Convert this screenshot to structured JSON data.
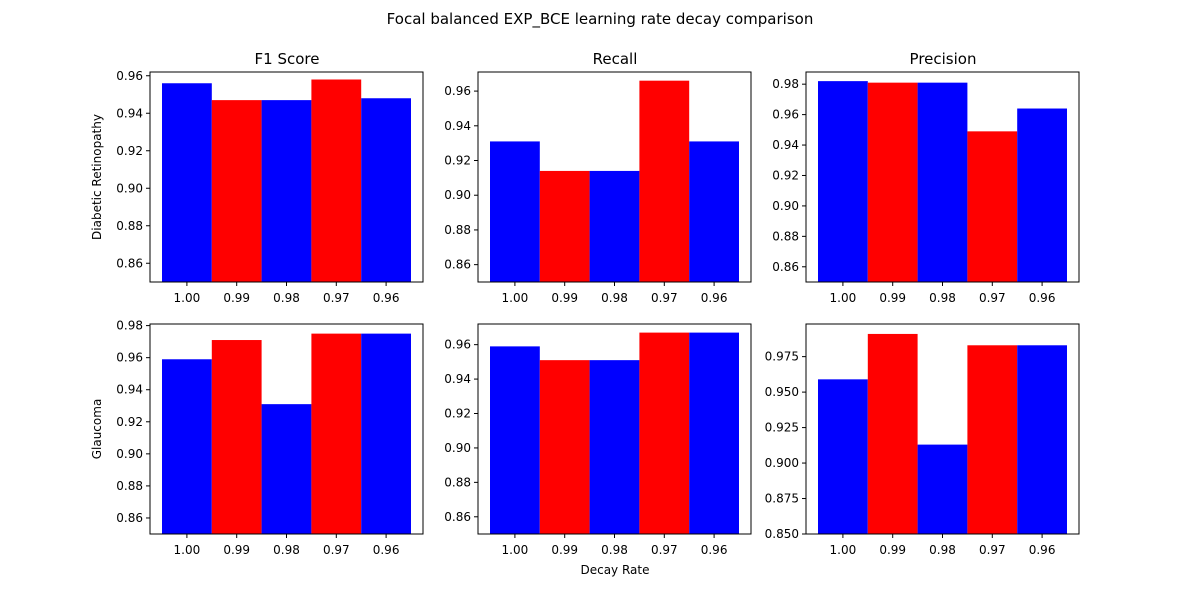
{
  "figure": {
    "suptitle": "Focal balanced EXP_BCE learning rate decay comparison",
    "xlabel": "Decay Rate",
    "row_labels": [
      "Diabetic Retinopathy",
      "Glaucoma"
    ],
    "col_titles": [
      "F1 Score",
      "Recall",
      "Precision"
    ]
  },
  "colors": {
    "blue": "#0000ff",
    "red": "#ff0000"
  },
  "chart_data": [
    {
      "type": "bar",
      "row": 0,
      "col": 0,
      "categories": [
        "1.00",
        "0.99",
        "0.98",
        "0.97",
        "0.96"
      ],
      "values": [
        0.956,
        0.947,
        0.947,
        0.958,
        0.948
      ],
      "bar_colors": [
        "blue",
        "red",
        "blue",
        "red",
        "blue"
      ],
      "ylim": [
        0.85,
        0.962
      ],
      "yticks": [
        0.86,
        0.88,
        0.9,
        0.92,
        0.94,
        0.96
      ],
      "ytick_labels": [
        "0.86",
        "0.88",
        "0.90",
        "0.92",
        "0.94",
        "0.96"
      ]
    },
    {
      "type": "bar",
      "row": 0,
      "col": 1,
      "categories": [
        "1.00",
        "0.99",
        "0.98",
        "0.97",
        "0.96"
      ],
      "values": [
        0.931,
        0.914,
        0.914,
        0.966,
        0.931
      ],
      "bar_colors": [
        "blue",
        "red",
        "blue",
        "red",
        "blue"
      ],
      "ylim": [
        0.85,
        0.971
      ],
      "yticks": [
        0.86,
        0.88,
        0.9,
        0.92,
        0.94,
        0.96
      ],
      "ytick_labels": [
        "0.86",
        "0.88",
        "0.90",
        "0.92",
        "0.94",
        "0.96"
      ]
    },
    {
      "type": "bar",
      "row": 0,
      "col": 2,
      "categories": [
        "1.00",
        "0.99",
        "0.98",
        "0.97",
        "0.96"
      ],
      "values": [
        0.982,
        0.981,
        0.981,
        0.949,
        0.964
      ],
      "bar_colors": [
        "blue",
        "red",
        "blue",
        "red",
        "blue"
      ],
      "ylim": [
        0.85,
        0.988
      ],
      "yticks": [
        0.86,
        0.88,
        0.9,
        0.92,
        0.94,
        0.96,
        0.98
      ],
      "ytick_labels": [
        "0.86",
        "0.88",
        "0.90",
        "0.92",
        "0.94",
        "0.96",
        "0.98"
      ]
    },
    {
      "type": "bar",
      "row": 1,
      "col": 0,
      "categories": [
        "1.00",
        "0.99",
        "0.98",
        "0.97",
        "0.96"
      ],
      "values": [
        0.959,
        0.971,
        0.931,
        0.975,
        0.975
      ],
      "bar_colors": [
        "blue",
        "red",
        "blue",
        "red",
        "blue"
      ],
      "ylim": [
        0.85,
        0.981
      ],
      "yticks": [
        0.86,
        0.88,
        0.9,
        0.92,
        0.94,
        0.96,
        0.98
      ],
      "ytick_labels": [
        "0.86",
        "0.88",
        "0.90",
        "0.92",
        "0.94",
        "0.96",
        "0.98"
      ]
    },
    {
      "type": "bar",
      "row": 1,
      "col": 1,
      "categories": [
        "1.00",
        "0.99",
        "0.98",
        "0.97",
        "0.96"
      ],
      "values": [
        0.959,
        0.951,
        0.951,
        0.967,
        0.967
      ],
      "bar_colors": [
        "blue",
        "red",
        "blue",
        "red",
        "blue"
      ],
      "ylim": [
        0.85,
        0.972
      ],
      "yticks": [
        0.86,
        0.88,
        0.9,
        0.92,
        0.94,
        0.96
      ],
      "ytick_labels": [
        "0.86",
        "0.88",
        "0.90",
        "0.92",
        "0.94",
        "0.96"
      ]
    },
    {
      "type": "bar",
      "row": 1,
      "col": 2,
      "categories": [
        "1.00",
        "0.99",
        "0.98",
        "0.97",
        "0.96"
      ],
      "values": [
        0.959,
        0.991,
        0.913,
        0.983,
        0.983
      ],
      "bar_colors": [
        "blue",
        "red",
        "blue",
        "red",
        "blue"
      ],
      "ylim": [
        0.85,
        0.998
      ],
      "yticks": [
        0.85,
        0.875,
        0.9,
        0.925,
        0.95,
        0.975
      ],
      "ytick_labels": [
        "0.850",
        "0.875",
        "0.900",
        "0.925",
        "0.950",
        "0.975"
      ]
    }
  ]
}
